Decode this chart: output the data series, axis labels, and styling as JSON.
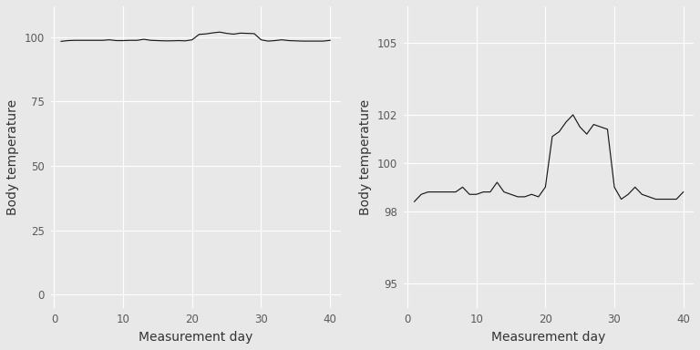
{
  "days": [
    1,
    2,
    3,
    4,
    5,
    6,
    7,
    8,
    9,
    10,
    11,
    12,
    13,
    14,
    15,
    16,
    17,
    18,
    19,
    20,
    21,
    22,
    23,
    24,
    25,
    26,
    27,
    28,
    29,
    30,
    31,
    32,
    33,
    34,
    35,
    36,
    37,
    38,
    39,
    40
  ],
  "temps": [
    98.4,
    98.7,
    98.8,
    98.8,
    98.8,
    98.8,
    98.8,
    99.0,
    98.7,
    98.7,
    98.8,
    98.8,
    99.2,
    98.8,
    98.7,
    98.6,
    98.6,
    98.7,
    98.6,
    99.0,
    101.1,
    101.3,
    101.7,
    102.0,
    101.5,
    101.2,
    101.6,
    101.5,
    101.4,
    99.0,
    98.5,
    98.7,
    99.0,
    98.7,
    98.6,
    98.5,
    98.5,
    98.5,
    98.5,
    98.8
  ],
  "left_ylim": [
    -5,
    112
  ],
  "left_yticks": [
    0,
    25,
    50,
    75,
    100
  ],
  "right_ylim": [
    94.0,
    106.5
  ],
  "right_yticks": [
    95,
    98,
    100,
    102,
    105
  ],
  "xlim": [
    -0.5,
    41.5
  ],
  "xticks": [
    0,
    10,
    20,
    30,
    40
  ],
  "xlabel": "Measurement day",
  "ylabel": "Body temperature",
  "bg_color": "#E8E8E8",
  "line_color": "#1a1a1a",
  "grid_color": "#FFFFFF",
  "tick_label_color": "#5a5a5a",
  "axis_label_fontsize": 10,
  "tick_fontsize": 8.5
}
